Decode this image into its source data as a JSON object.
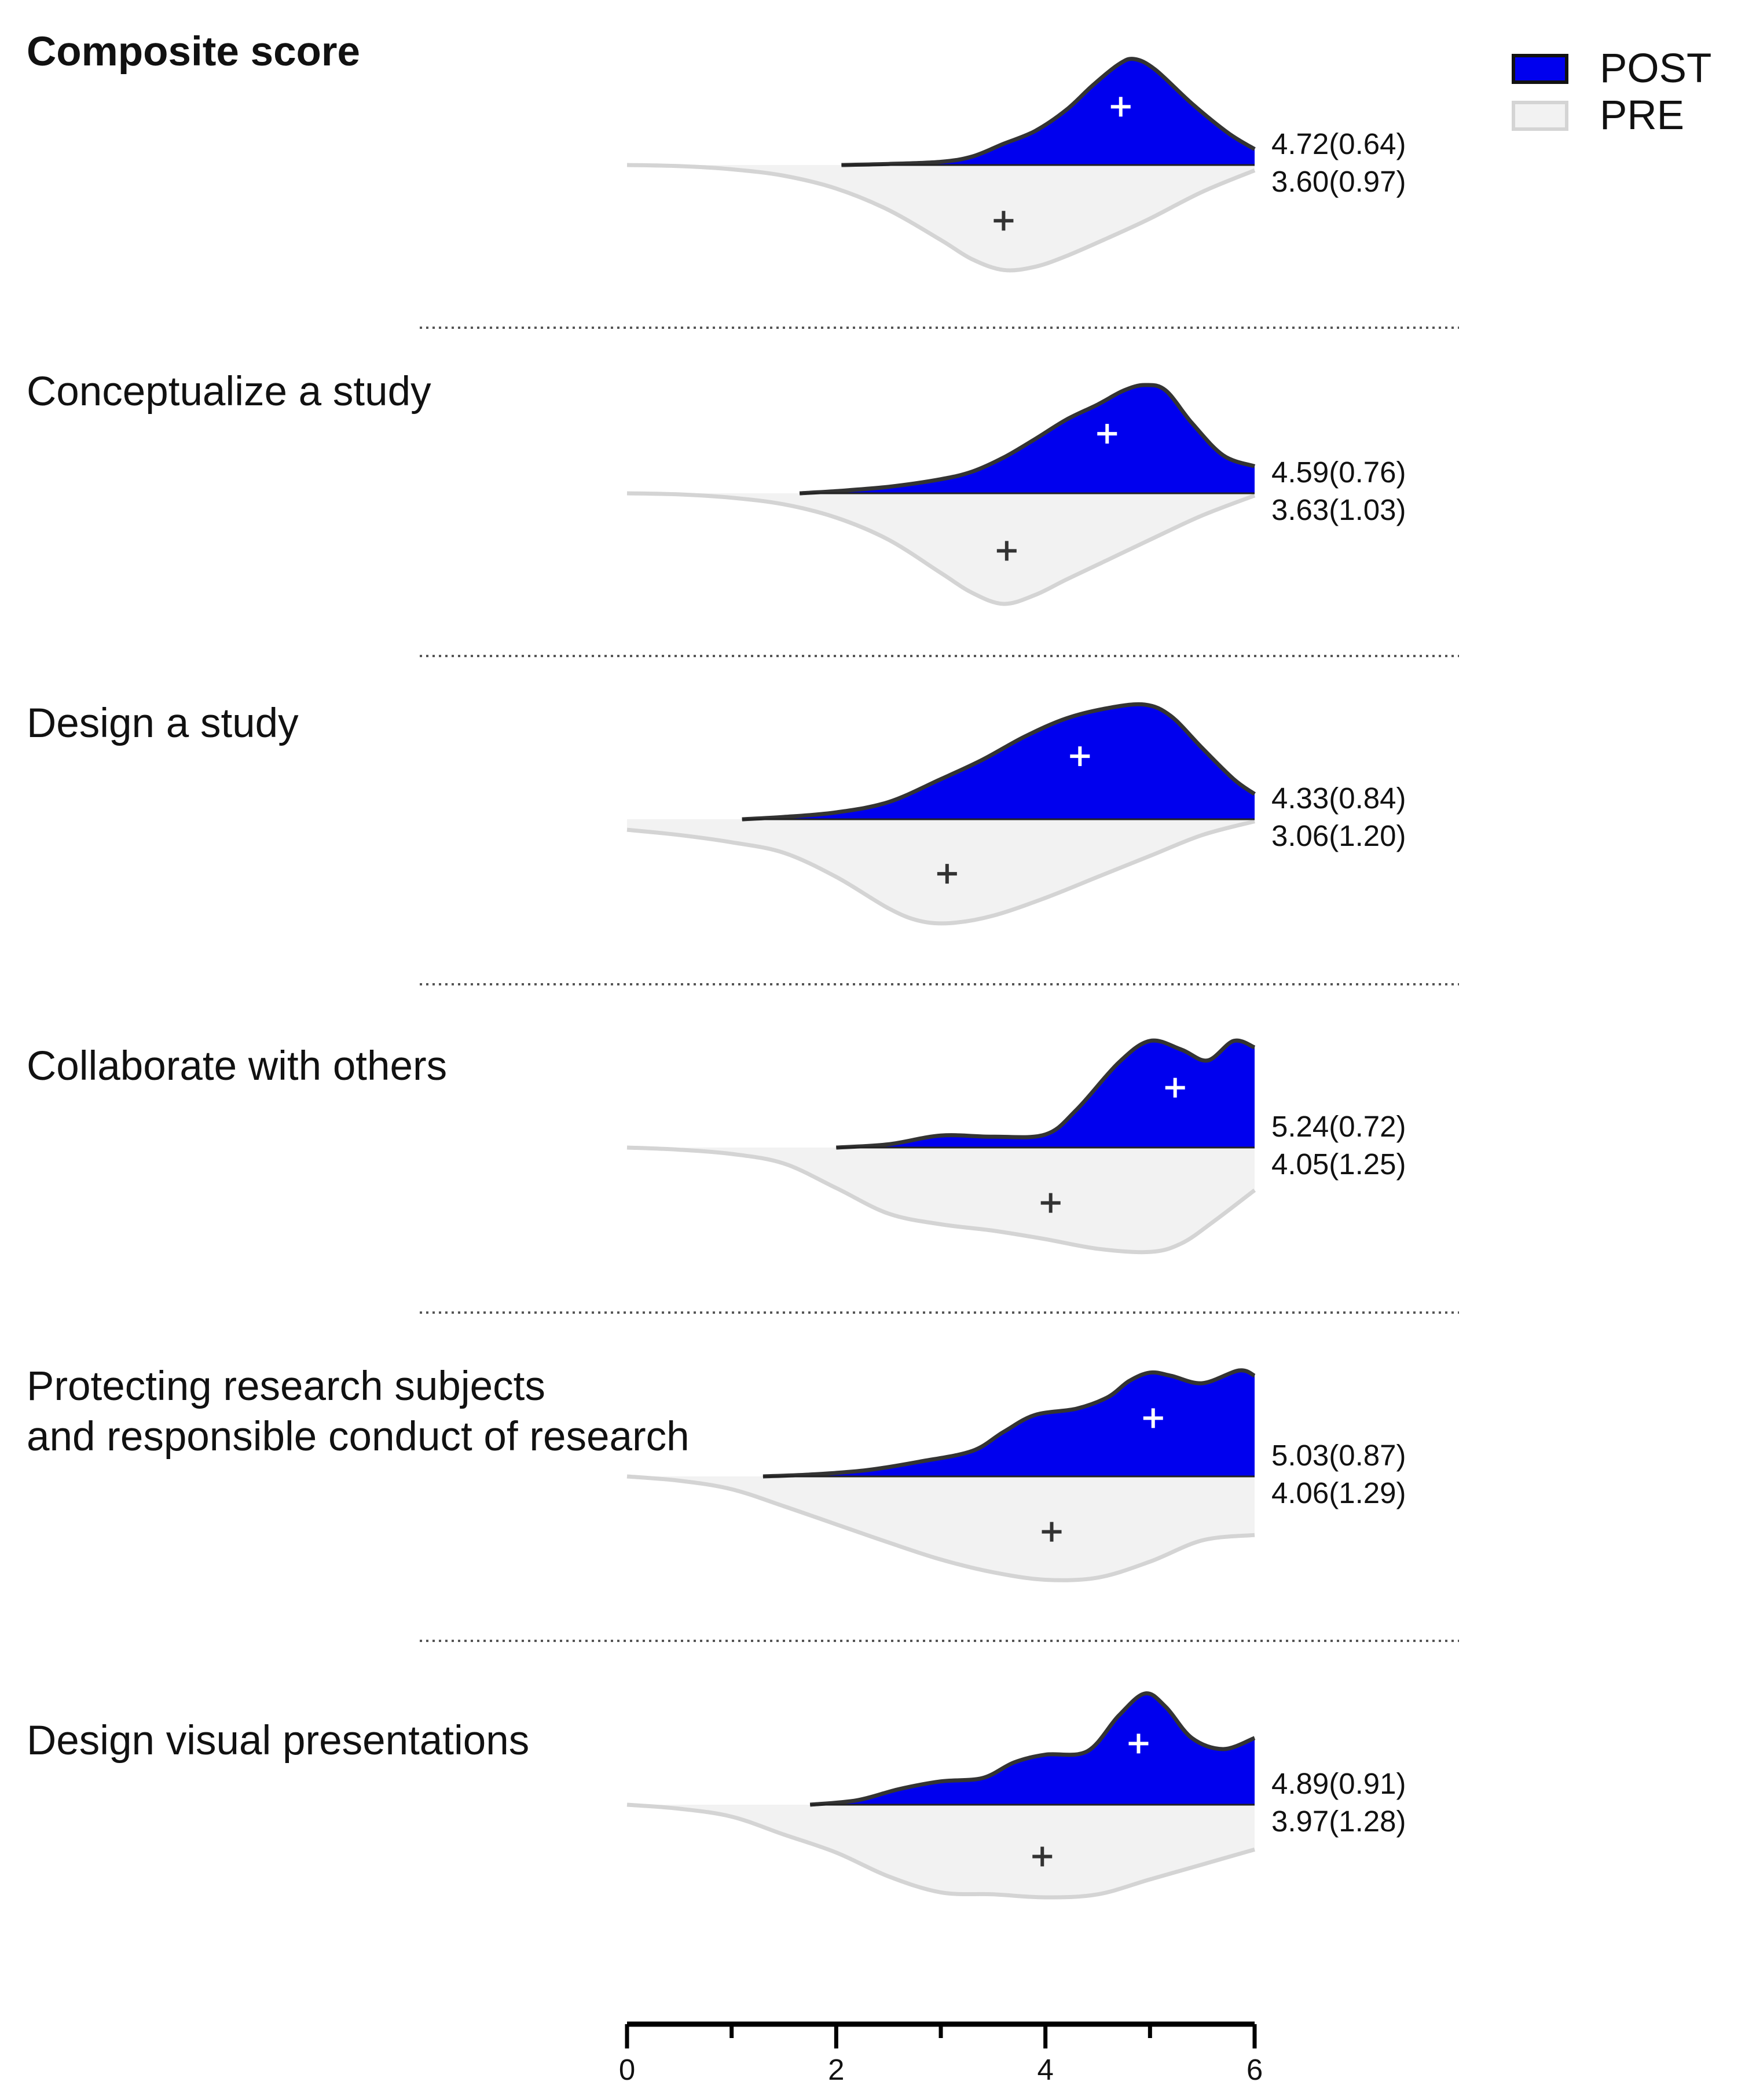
{
  "chart_data": {
    "type": "area",
    "xlim": [
      0,
      6
    ],
    "x_ticks": [
      "0",
      "2",
      "4",
      "6"
    ],
    "x_minor_ticks": [
      1,
      3,
      5
    ],
    "legend_position": "top-right",
    "colors": {
      "post": "#0000ee",
      "pre": "#f2f2f2",
      "pre_outline": "#d4d4d4",
      "post_outline": "#333333"
    },
    "legend": [
      {
        "key": "post",
        "label": "POST"
      },
      {
        "key": "pre",
        "label": "PRE"
      }
    ],
    "panels": [
      {
        "title": "Composite score",
        "bold": true,
        "post": {
          "mean": 4.72,
          "label": "4.72(0.64)",
          "x": [
            2.05,
            2.5,
            3.0,
            3.3,
            3.6,
            3.9,
            4.2,
            4.45,
            4.7,
            4.85,
            5.05,
            5.4,
            5.75,
            6.0
          ],
          "y": [
            0.0,
            0.01,
            0.03,
            0.08,
            0.2,
            0.32,
            0.52,
            0.75,
            0.95,
            1.0,
            0.9,
            0.58,
            0.3,
            0.15
          ]
        },
        "pre": {
          "mean": 3.6,
          "label": "3.60(0.97)",
          "x": [
            0.0,
            0.5,
            1.0,
            1.5,
            2.0,
            2.5,
            3.0,
            3.3,
            3.6,
            3.9,
            4.2,
            4.6,
            5.0,
            5.5,
            6.0
          ],
          "y": [
            0.0,
            0.01,
            0.04,
            0.1,
            0.22,
            0.42,
            0.7,
            0.88,
            0.98,
            0.95,
            0.85,
            0.68,
            0.5,
            0.25,
            0.05
          ]
        }
      },
      {
        "title": "Conceptualize a study",
        "bold": false,
        "post": {
          "mean": 4.59,
          "label": "4.59(0.76)",
          "x": [
            1.65,
            2.0,
            2.5,
            3.0,
            3.3,
            3.6,
            3.9,
            4.2,
            4.5,
            4.75,
            4.95,
            5.15,
            5.4,
            5.7,
            6.0
          ],
          "y": [
            0.0,
            0.02,
            0.06,
            0.13,
            0.2,
            0.33,
            0.5,
            0.68,
            0.82,
            0.95,
            1.0,
            0.95,
            0.65,
            0.35,
            0.25
          ]
        },
        "pre": {
          "mean": 3.63,
          "label": "3.63(1.03)",
          "x": [
            0.0,
            0.5,
            1.0,
            1.5,
            2.0,
            2.5,
            3.0,
            3.3,
            3.6,
            3.9,
            4.2,
            4.6,
            5.0,
            5.5,
            6.0
          ],
          "y": [
            0.0,
            0.01,
            0.04,
            0.1,
            0.22,
            0.42,
            0.72,
            0.9,
            1.0,
            0.92,
            0.78,
            0.6,
            0.42,
            0.2,
            0.02
          ]
        }
      },
      {
        "title": "Design a study",
        "bold": false,
        "post": {
          "mean": 4.33,
          "label": "4.33(0.84)",
          "x": [
            1.1,
            1.5,
            2.0,
            2.5,
            3.0,
            3.4,
            3.8,
            4.2,
            4.6,
            4.95,
            5.2,
            5.5,
            5.8,
            6.0
          ],
          "y": [
            0.0,
            0.02,
            0.06,
            0.15,
            0.35,
            0.52,
            0.72,
            0.88,
            0.97,
            1.0,
            0.9,
            0.62,
            0.35,
            0.22
          ]
        },
        "pre": {
          "mean": 3.06,
          "label": "3.06(1.20)",
          "x": [
            0.0,
            0.5,
            1.0,
            1.5,
            2.0,
            2.5,
            2.8,
            3.1,
            3.5,
            4.0,
            4.5,
            5.0,
            5.5,
            6.0
          ],
          "y": [
            0.1,
            0.15,
            0.22,
            0.32,
            0.55,
            0.85,
            0.97,
            0.99,
            0.92,
            0.75,
            0.55,
            0.35,
            0.15,
            0.02
          ]
        }
      },
      {
        "title": "Collaborate with others",
        "bold": false,
        "post": {
          "mean": 5.24,
          "label": "5.24(0.72)",
          "x": [
            2.0,
            2.5,
            3.0,
            3.5,
            4.0,
            4.3,
            4.7,
            5.0,
            5.3,
            5.55,
            5.8,
            6.0
          ],
          "y": [
            0.0,
            0.03,
            0.11,
            0.1,
            0.12,
            0.35,
            0.78,
            0.98,
            0.9,
            0.8,
            0.98,
            0.92
          ]
        },
        "pre": {
          "mean": 4.05,
          "label": "4.05(1.25)",
          "x": [
            0.0,
            0.5,
            1.0,
            1.5,
            2.0,
            2.5,
            3.0,
            3.5,
            4.0,
            4.5,
            5.0,
            5.3,
            5.6,
            6.0
          ],
          "y": [
            0.0,
            0.02,
            0.06,
            0.15,
            0.38,
            0.62,
            0.72,
            0.78,
            0.86,
            0.95,
            0.98,
            0.9,
            0.7,
            0.4
          ]
        }
      },
      {
        "title": "Protecting research subjects\nand responsible conduct of research",
        "bold": false,
        "post": {
          "mean": 5.03,
          "label": "5.03(0.87)",
          "x": [
            1.3,
            1.8,
            2.3,
            2.8,
            3.3,
            3.6,
            3.9,
            4.3,
            4.6,
            4.8,
            5.0,
            5.2,
            5.5,
            5.85,
            6.0
          ],
          "y": [
            0.0,
            0.02,
            0.06,
            0.14,
            0.24,
            0.42,
            0.58,
            0.64,
            0.75,
            0.9,
            0.98,
            0.95,
            0.88,
            1.0,
            0.95
          ]
        },
        "pre": {
          "mean": 4.06,
          "label": "4.06(1.29)",
          "x": [
            0.0,
            0.5,
            1.0,
            1.5,
            2.0,
            2.5,
            3.0,
            3.5,
            4.0,
            4.5,
            5.0,
            5.5,
            6.0
          ],
          "y": [
            0.0,
            0.04,
            0.12,
            0.28,
            0.45,
            0.62,
            0.78,
            0.9,
            0.97,
            0.95,
            0.8,
            0.6,
            0.55
          ]
        }
      },
      {
        "title": "Design visual presentations",
        "bold": false,
        "post": {
          "mean": 4.89,
          "label": "4.89(0.91)",
          "x": [
            1.75,
            2.2,
            2.6,
            3.0,
            3.4,
            3.7,
            4.0,
            4.4,
            4.7,
            4.95,
            5.15,
            5.4,
            5.7,
            6.0
          ],
          "y": [
            0.0,
            0.04,
            0.14,
            0.21,
            0.24,
            0.38,
            0.45,
            0.48,
            0.8,
            1.0,
            0.88,
            0.6,
            0.5,
            0.6
          ]
        },
        "pre": {
          "mean": 3.97,
          "label": "3.97(1.28)",
          "x": [
            0.0,
            0.5,
            1.0,
            1.5,
            2.0,
            2.5,
            3.0,
            3.5,
            4.0,
            4.5,
            5.0,
            5.5,
            6.0
          ],
          "y": [
            0.0,
            0.04,
            0.12,
            0.3,
            0.48,
            0.72,
            0.88,
            0.9,
            0.93,
            0.9,
            0.75,
            0.6,
            0.45
          ]
        }
      }
    ]
  }
}
